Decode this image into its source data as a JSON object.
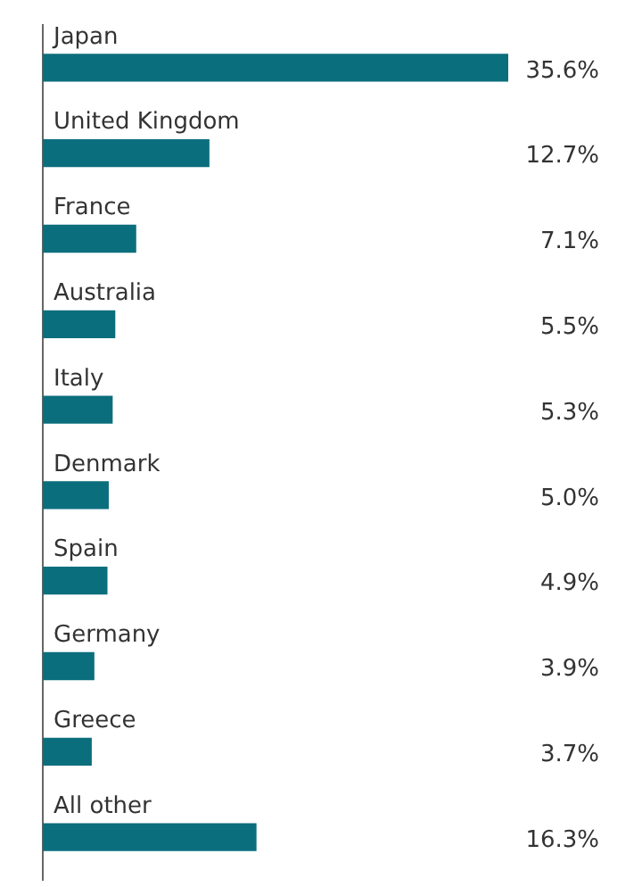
{
  "chart_data": {
    "type": "bar",
    "orientation": "horizontal",
    "tick_labels": "y",
    "categories": [
      "Japan",
      "United Kingdom",
      "France",
      "Australia",
      "Italy",
      "Denmark",
      "Spain",
      "Germany",
      "Greece",
      "All other"
    ],
    "values": [
      35.6,
      12.7,
      7.1,
      5.5,
      5.3,
      5.0,
      4.9,
      3.9,
      3.7,
      16.3
    ],
    "value_labels": [
      "35.6%",
      "12.7%",
      "7.1%",
      "5.5%",
      "5.3%",
      "5.0%",
      "4.9%",
      "3.9%",
      "3.7%",
      "16.3%"
    ],
    "color": "#0b6e7d",
    "legend": false
  }
}
